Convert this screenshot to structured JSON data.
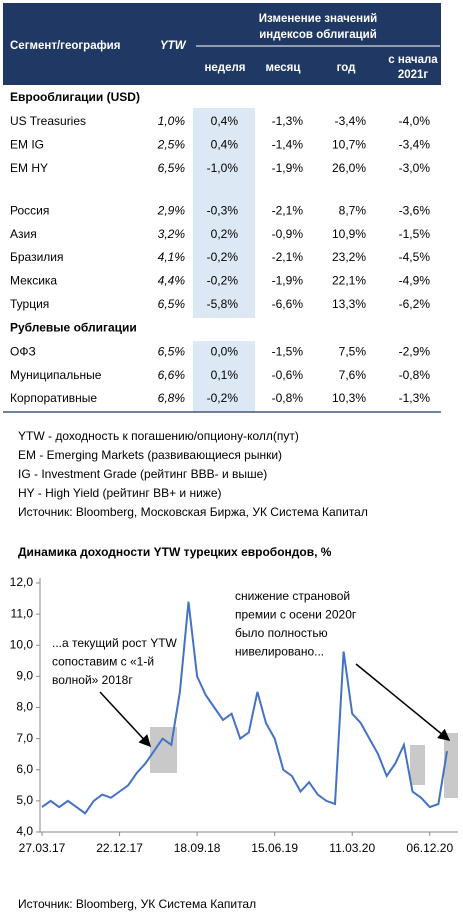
{
  "table": {
    "header": {
      "segment": "Сегмент/география",
      "ytw": "YTW",
      "group": [
        "Изменение значений",
        "индексов облигаций"
      ],
      "columns": [
        [
          "неделя"
        ],
        [
          "месяц"
        ],
        [
          "год"
        ],
        [
          "с начала",
          "2021г"
        ]
      ]
    },
    "sections": [
      {
        "title": "Еврооблигации (USD)",
        "rows": [
          [
            "US Treasuries",
            "1,0%",
            "0,4%",
            "-1,3%",
            "-3,4%",
            "-4,0%"
          ],
          [
            "EM IG",
            "2,5%",
            "0,4%",
            "-1,4%",
            "10,7%",
            "-3,4%"
          ],
          [
            "EM HY",
            "6,5%",
            "-1,0%",
            "-1,9%",
            "26,0%",
            "-3,0%"
          ]
        ]
      },
      {
        "rows": [
          [
            "Россия",
            "2,9%",
            "-0,3%",
            "-2,1%",
            "8,7%",
            "-3,6%"
          ],
          [
            "Азия",
            "3,2%",
            "0,2%",
            "-0,9%",
            "10,9%",
            "-1,5%"
          ],
          [
            "Бразилия",
            "4,1%",
            "-0,2%",
            "-2,1%",
            "23,2%",
            "-4,5%"
          ],
          [
            "Мексика",
            "4,4%",
            "-0,2%",
            "-1,9%",
            "22,1%",
            "-4,9%"
          ],
          [
            "Турция",
            "6,5%",
            "-5,8%",
            "-6,6%",
            "13,3%",
            "-6,2%"
          ]
        ]
      },
      {
        "title": "Рублевые облигации",
        "rows": [
          [
            "ОФЗ",
            "6,5%",
            "0,0%",
            "-1,5%",
            "7,5%",
            "-2,9%"
          ],
          [
            "Муниципальные",
            "6,6%",
            "0,1%",
            "-0,6%",
            "7,6%",
            "-0,8%"
          ],
          [
            "Корпоративные",
            "6,8%",
            "-0,2%",
            "-0,8%",
            "10,3%",
            "-1,3%"
          ]
        ]
      }
    ]
  },
  "notes": [
    "YTW - доходность к погашению/опциону-колл(пут)",
    "EM - Emerging Markets (развивающиеся рынки)",
    "IG - Investment Grade (рейтинг BBB- и выше)",
    "HY - High Yield (рейтинг BB+ и ниже)",
    "Источник: Bloomberg, Московская Биржа, УК Система Капитал"
  ],
  "chart_data": {
    "type": "line",
    "title": "Динамика доходности YTW турецких евробондов, %",
    "categories": [
      "27.03.17",
      null,
      null,
      null,
      null,
      null,
      null,
      null,
      null,
      "22.12.17",
      null,
      null,
      null,
      null,
      null,
      null,
      null,
      null,
      "18.09.18",
      null,
      null,
      null,
      null,
      null,
      null,
      null,
      null,
      "15.06.19",
      null,
      null,
      null,
      null,
      null,
      null,
      null,
      null,
      "11.03.20",
      null,
      null,
      null,
      null,
      null,
      null,
      null,
      null,
      "06.12.20",
      null,
      null
    ],
    "values": [
      4.8,
      5.0,
      4.8,
      5.0,
      4.8,
      4.6,
      5.0,
      5.2,
      5.1,
      5.3,
      5.5,
      5.9,
      6.2,
      6.6,
      7.0,
      6.8,
      8.5,
      11.4,
      9.0,
      8.4,
      8.0,
      7.6,
      7.8,
      7.0,
      7.2,
      8.5,
      7.5,
      7.0,
      6.0,
      5.8,
      5.3,
      5.6,
      5.2,
      5.0,
      4.9,
      9.8,
      7.8,
      7.5,
      7.0,
      6.5,
      5.8,
      6.2,
      6.8,
      5.3,
      5.1,
      4.8,
      4.9,
      6.6
    ],
    "color": "#4472c4",
    "ylim": [
      4,
      12
    ],
    "yticks": [
      {
        "value": 4,
        "label": "4,0"
      },
      {
        "value": 5,
        "label": "5,0"
      },
      {
        "value": 6,
        "label": "6,0"
      },
      {
        "value": 7,
        "label": "7,0"
      },
      {
        "value": 8,
        "label": "8,0"
      },
      {
        "value": 9,
        "label": "9,0"
      },
      {
        "value": 10,
        "label": "10,0"
      },
      {
        "value": 11,
        "label": "11,0"
      },
      {
        "value": 12,
        "label": "12,0"
      }
    ],
    "grid": false,
    "annotations": [
      [
        "...а текущий рост YTW",
        "сопоставим с «1-й",
        "волной» 2018г"
      ],
      [
        "снижение страновой",
        "премии с осени 2020г",
        "было полностью",
        "нивелировано..."
      ]
    ],
    "source": "Источник: Bloomberg, УК Система Капитал"
  }
}
